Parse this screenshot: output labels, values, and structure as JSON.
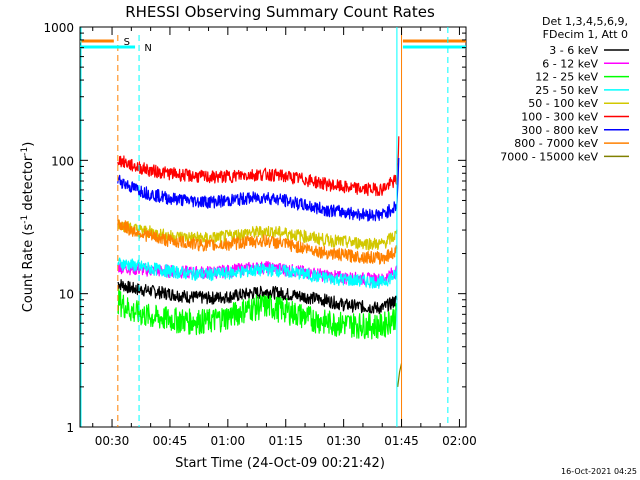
{
  "chart_data": {
    "type": "line",
    "title": "RHESSI Observing Summary Count Rates",
    "xlabel": "Start Time (24-Oct-09 00:21:42)",
    "ylabel_main": "Count Rate (s",
    "ylabel_sup1": "-1",
    "ylabel_mid": " detector",
    "ylabel_sup2": "-1",
    "ylabel_end": ")",
    "y_scale": "log",
    "ylim": [
      1,
      1000
    ],
    "xlim_minutes": [
      21.7,
      121.7
    ],
    "x_tick_labels": [
      "00:30",
      "00:45",
      "01:00",
      "01:15",
      "01:30",
      "01:45",
      "02:00"
    ],
    "x_tick_minutes": [
      30,
      45,
      60,
      75,
      90,
      105,
      120
    ],
    "y_tick_labels": [
      "1",
      "10",
      "100",
      "1000"
    ],
    "y_tick_values": [
      1,
      10,
      100,
      1000
    ],
    "legend_header": [
      "Det 1,3,4,5,6,9,",
      "FDecim 1, Att 0"
    ],
    "legend_position": "outside-right",
    "timestamp": "16-Oct-2021 04:25",
    "flag_markers": [
      {
        "label": "S",
        "color": "#ff8000",
        "start_minute": 31.5,
        "end_minute": 103.8
      },
      {
        "label": "N",
        "color": "#00ffff",
        "start_minute": 37.0,
        "end_minute": 103.8
      }
    ],
    "orbit_boundaries_minutes": [
      103.8,
      105.0,
      117.0
    ],
    "series": [
      {
        "name": "3 - 6 keV",
        "color": "#000000",
        "x": [
          31.5,
          35,
          40,
          45,
          50,
          55,
          60,
          65,
          70,
          75,
          80,
          85,
          90,
          95,
          100,
          103.8
        ],
        "y": [
          12,
          11,
          10.5,
          10,
          9.5,
          9.3,
          9.5,
          10,
          10.4,
          10,
          9.5,
          9,
          8.3,
          8,
          7.8,
          9
        ]
      },
      {
        "name": "6 - 12 keV",
        "color": "#ff00ff",
        "x": [
          31.5,
          35,
          40,
          45,
          50,
          55,
          60,
          65,
          70,
          75,
          80,
          85,
          90,
          95,
          100,
          103.8
        ],
        "y": [
          16,
          15.5,
          15,
          14.8,
          14.5,
          14.5,
          14.8,
          15.5,
          15.8,
          15.2,
          14.5,
          13.8,
          13.2,
          13,
          12.8,
          15
        ]
      },
      {
        "name": "12 - 25 keV",
        "color": "#00ff00",
        "x": [
          31.5,
          35,
          40,
          45,
          50,
          55,
          60,
          65,
          70,
          75,
          80,
          85,
          90,
          95,
          100,
          103.8
        ],
        "y": [
          9,
          7.5,
          6.8,
          6.5,
          6.3,
          6.3,
          6.8,
          7.8,
          8.2,
          7.6,
          6.8,
          6.2,
          6,
          5.9,
          5.8,
          7
        ]
      },
      {
        "name": "25 - 50 keV",
        "color": "#00ffff",
        "x": [
          31.5,
          35,
          40,
          45,
          50,
          55,
          60,
          65,
          70,
          75,
          80,
          85,
          90,
          95,
          100,
          103.8
        ],
        "y": [
          17,
          16.5,
          15.5,
          14.8,
          14.2,
          14,
          14.3,
          14.8,
          15.2,
          14.8,
          14,
          13.2,
          12.8,
          12.5,
          12.2,
          14
        ]
      },
      {
        "name": "50 - 100 keV",
        "color": "#d2c800",
        "x": [
          31.5,
          35,
          40,
          45,
          50,
          55,
          60,
          65,
          70,
          75,
          80,
          85,
          90,
          95,
          100,
          103.8
        ],
        "y": [
          34,
          31,
          29,
          27,
          26.5,
          26,
          27,
          28.5,
          29.5,
          28.5,
          27,
          25.5,
          24.5,
          24,
          23.5,
          28
        ]
      },
      {
        "name": "100 - 300 keV",
        "color": "#ff0000",
        "x": [
          31.5,
          35,
          40,
          45,
          50,
          55,
          60,
          65,
          70,
          75,
          80,
          85,
          90,
          95,
          100,
          103.8,
          104.3
        ],
        "y": [
          102,
          92,
          84,
          80,
          77,
          75,
          76,
          78,
          79,
          76,
          72,
          67,
          63,
          61,
          61,
          72,
          140
        ]
      },
      {
        "name": "300 - 800 keV",
        "color": "#0000ff",
        "x": [
          31.5,
          35,
          40,
          45,
          50,
          55,
          60,
          65,
          70,
          75,
          80,
          85,
          90,
          95,
          100,
          103.8,
          104.3
        ],
        "y": [
          72,
          63,
          56,
          52,
          50,
          49,
          50,
          52,
          53,
          50,
          46,
          43,
          41,
          39.5,
          39,
          46,
          100
        ]
      },
      {
        "name": "800 - 7000 keV",
        "color": "#ff8000",
        "x": [
          31.5,
          35,
          40,
          45,
          50,
          55,
          60,
          65,
          70,
          75,
          80,
          85,
          90,
          95,
          100,
          103.8
        ],
        "y": [
          34,
          30,
          27,
          25,
          24,
          23,
          23.5,
          24.5,
          25,
          23.5,
          22,
          20.5,
          19.5,
          19,
          18.5,
          21
        ]
      },
      {
        "name": "7000 - 15000 keV",
        "color": "#808000",
        "x": [
          104,
          104.5,
          105
        ],
        "y": [
          2,
          2.6,
          3
        ]
      }
    ]
  }
}
